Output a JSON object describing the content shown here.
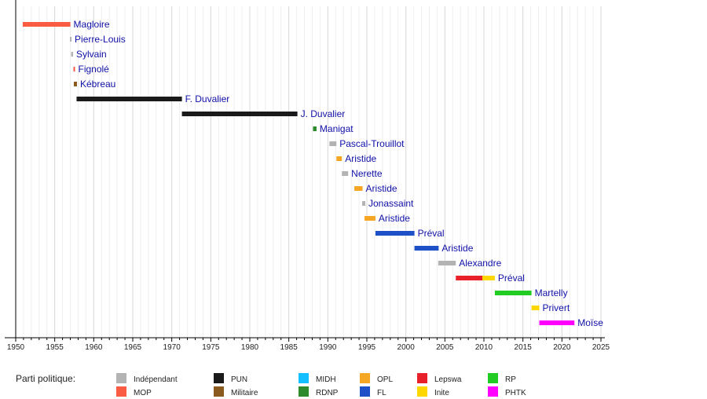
{
  "chart_data": {
    "type": "timeline",
    "title": "",
    "xlabel": "",
    "ylabel": "",
    "xlim": [
      1950,
      2025
    ],
    "xticks": [
      1950,
      1955,
      1960,
      1965,
      1970,
      1975,
      1980,
      1985,
      1990,
      1995,
      2000,
      2005,
      2010,
      2015,
      2020,
      2025
    ],
    "grid": "vertical, every year",
    "legend_title": "Parti politique:",
    "legend_position": "bottom",
    "parties": [
      {
        "name": "Indépendant",
        "color": "#b3b3b3"
      },
      {
        "name": "MOP",
        "color": "#f95c42"
      },
      {
        "name": "PUN",
        "color": "#1a1a1a"
      },
      {
        "name": "Militaire",
        "color": "#8b5a1e"
      },
      {
        "name": "MIDH",
        "color": "#14bfff"
      },
      {
        "name": "RDNP",
        "color": "#2d8b2d"
      },
      {
        "name": "OPL",
        "color": "#f5a623"
      },
      {
        "name": "FL",
        "color": "#1e50c8"
      },
      {
        "name": "Lepswa",
        "color": "#e8202a"
      },
      {
        "name": "Inite",
        "color": "#ffd700"
      },
      {
        "name": "RP",
        "color": "#22cc22"
      },
      {
        "name": "PHTK",
        "color": "#ff00ff"
      }
    ],
    "series": [
      {
        "name": "Magloire",
        "segments": [
          {
            "start": 1950.9,
            "end": 1957.0,
            "party": "MOP"
          }
        ]
      },
      {
        "name": "Pierre-Louis",
        "segments": [
          {
            "start": 1956.95,
            "end": 1957.1,
            "party": "Indépendant"
          }
        ]
      },
      {
        "name": "Sylvain",
        "segments": [
          {
            "start": 1957.1,
            "end": 1957.35,
            "party": "Indépendant"
          }
        ]
      },
      {
        "name": "Fignolé",
        "segments": [
          {
            "start": 1957.4,
            "end": 1957.5,
            "party": "MOP"
          }
        ]
      },
      {
        "name": "Kébreau",
        "segments": [
          {
            "start": 1957.45,
            "end": 1957.85,
            "party": "Militaire"
          }
        ]
      },
      {
        "name": "F. Duvalier",
        "segments": [
          {
            "start": 1957.8,
            "end": 1971.3,
            "party": "PUN"
          }
        ]
      },
      {
        "name": "J. Duvalier",
        "segments": [
          {
            "start": 1971.3,
            "end": 1986.1,
            "party": "PUN"
          }
        ]
      },
      {
        "name": "Manigat",
        "segments": [
          {
            "start": 1988.1,
            "end": 1988.55,
            "party": "RDNP"
          }
        ]
      },
      {
        "name": "Pascal-Trouillot",
        "segments": [
          {
            "start": 1990.2,
            "end": 1991.1,
            "party": "Indépendant"
          }
        ]
      },
      {
        "name": "Aristide",
        "segments": [
          {
            "start": 1991.1,
            "end": 1991.8,
            "party": "OPL"
          }
        ]
      },
      {
        "name": "Nerette",
        "segments": [
          {
            "start": 1991.8,
            "end": 1992.6,
            "party": "Indépendant"
          }
        ]
      },
      {
        "name": "Aristide",
        "segments": [
          {
            "start": 1993.4,
            "end": 1994.45,
            "party": "OPL"
          }
        ]
      },
      {
        "name": "Jonassaint",
        "segments": [
          {
            "start": 1994.4,
            "end": 1994.8,
            "party": "Indépendant"
          }
        ]
      },
      {
        "name": "Aristide",
        "segments": [
          {
            "start": 1994.7,
            "end": 1996.1,
            "party": "OPL"
          }
        ]
      },
      {
        "name": "Préval",
        "segments": [
          {
            "start": 1996.1,
            "end": 2001.1,
            "party": "FL"
          }
        ]
      },
      {
        "name": "Aristide",
        "segments": [
          {
            "start": 2001.1,
            "end": 2004.2,
            "party": "FL"
          }
        ]
      },
      {
        "name": "Alexandre",
        "segments": [
          {
            "start": 2004.15,
            "end": 2006.4,
            "party": "Indépendant"
          }
        ]
      },
      {
        "name": "Préval",
        "segments": [
          {
            "start": 2006.4,
            "end": 2009.8,
            "party": "Lepswa"
          },
          {
            "start": 2009.8,
            "end": 2011.4,
            "party": "Inite"
          }
        ]
      },
      {
        "name": "Martelly",
        "segments": [
          {
            "start": 2011.4,
            "end": 2016.1,
            "party": "RP"
          }
        ]
      },
      {
        "name": "Privert",
        "segments": [
          {
            "start": 2016.1,
            "end": 2017.1,
            "party": "Inite"
          }
        ]
      },
      {
        "name": "Moïse",
        "segments": [
          {
            "start": 2017.1,
            "end": 2021.6,
            "party": "PHTK"
          }
        ]
      }
    ]
  }
}
